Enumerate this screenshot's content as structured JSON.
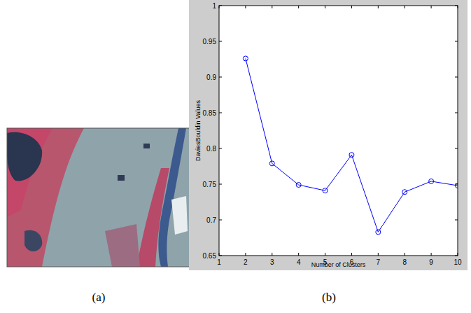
{
  "captions": [
    "(a)",
    "(b)"
  ],
  "chart_data": {
    "type": "line",
    "x_label": "Number of Clusters",
    "y_label": "DaviesBouldin Values",
    "x": [
      2,
      3,
      4,
      5,
      6,
      7,
      8,
      9,
      10
    ],
    "values": [
      0.926,
      0.779,
      0.749,
      0.741,
      0.791,
      0.683,
      0.739,
      0.754,
      0.748
    ],
    "color": "#0000ff",
    "marker": "circle",
    "line_style": "solid",
    "xlim": [
      1,
      10
    ],
    "xticks": [
      1,
      2,
      3,
      4,
      5,
      6,
      7,
      8,
      9,
      10
    ],
    "ylim": [
      0.65,
      1
    ],
    "yticks": [
      0.65,
      0.7,
      0.75,
      0.8,
      0.85,
      0.9,
      0.95,
      1
    ],
    "grid": false
  }
}
